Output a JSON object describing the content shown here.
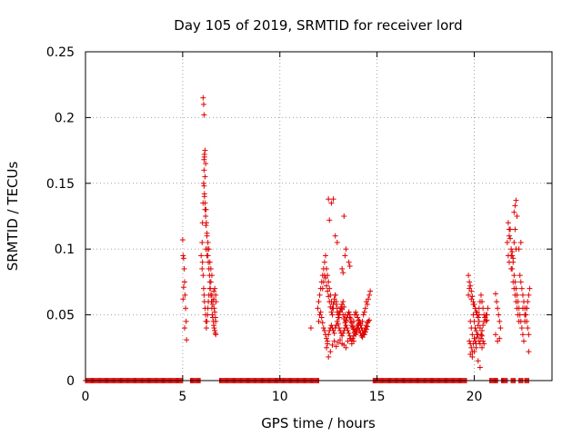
{
  "chart_data": {
    "type": "scatter",
    "title": "Day 105 of 2019, SRMTID for receiver lord",
    "xlabel": "GPS time / hours",
    "ylabel": "SRMTID / TECUs",
    "xlim": [
      0,
      24
    ],
    "ylim": [
      0,
      0.25
    ],
    "xticks": [
      0,
      5,
      10,
      15,
      20
    ],
    "xtick_labels": [
      "0",
      "5",
      "10",
      "15",
      "20"
    ],
    "yticks": [
      0,
      0.05,
      0.1,
      0.15,
      0.2,
      0.25
    ],
    "ytick_labels": [
      "0",
      "0.05",
      "0.1",
      "0.15",
      "0.2",
      "0.25"
    ],
    "grid": true,
    "marker": "plus",
    "color": "#e00000",
    "zero_segments": [
      [
        0.0,
        5.0
      ],
      [
        5.4,
        5.9
      ],
      [
        6.9,
        12.0
      ],
      [
        14.8,
        19.6
      ],
      [
        20.8,
        21.2
      ],
      [
        21.4,
        21.7
      ],
      [
        21.9,
        22.1
      ],
      [
        22.3,
        22.5
      ],
      [
        22.6,
        22.8
      ]
    ],
    "series": [
      {
        "name": "SRMTID",
        "x": [
          5.0,
          5.02,
          5.05,
          5.08,
          5.1,
          5.12,
          5.15,
          5.18,
          5.2,
          5.02,
          5.05,
          5.1,
          5.95,
          6.0,
          6.02,
          6.05,
          6.08,
          6.1,
          6.12,
          6.15,
          6.18,
          6.2,
          6.22,
          6.25,
          6.28,
          6.3,
          6.32,
          6.35,
          6.38,
          6.4,
          6.42,
          6.45,
          6.48,
          6.5,
          6.52,
          6.55,
          6.58,
          6.6,
          6.62,
          6.65,
          6.68,
          6.7,
          6.0,
          6.02,
          6.05,
          6.08,
          6.1,
          6.12,
          6.15,
          6.18,
          6.2,
          6.22,
          6.25,
          6.28,
          6.3,
          6.32,
          6.35,
          6.4,
          6.45,
          6.5,
          6.55,
          6.6,
          6.65,
          6.7,
          6.72,
          6.05,
          6.08,
          6.1,
          6.12,
          6.15,
          6.18,
          6.2,
          6.25,
          6.3,
          6.35,
          6.4,
          6.45,
          6.5,
          6.55,
          6.6,
          6.62,
          6.65,
          6.68,
          6.7,
          6.1,
          6.12,
          6.15,
          6.1,
          6.12,
          6.15,
          6.2,
          6.25,
          11.6,
          11.95,
          12.0,
          12.05,
          12.1,
          12.15,
          12.2,
          12.25,
          12.3,
          12.35,
          12.4,
          12.45,
          12.5,
          12.55,
          12.6,
          12.65,
          12.7,
          12.75,
          12.8,
          12.85,
          12.9,
          12.95,
          13.0,
          13.05,
          13.1,
          13.15,
          13.2,
          13.25,
          13.3,
          13.35,
          13.4,
          13.45,
          13.5,
          13.55,
          13.6,
          13.65,
          13.7,
          13.75,
          13.8,
          13.85,
          13.9,
          13.95,
          14.0,
          14.05,
          14.1,
          14.15,
          14.2,
          14.25,
          14.3,
          14.35,
          14.4,
          14.45,
          14.5,
          14.55,
          14.6,
          14.65,
          12.0,
          12.05,
          12.1,
          12.15,
          12.2,
          12.25,
          12.3,
          12.35,
          12.4,
          12.45,
          12.5,
          12.55,
          12.6,
          12.65,
          12.7,
          12.75,
          12.8,
          12.85,
          12.9,
          12.95,
          13.0,
          13.05,
          13.1,
          13.15,
          13.2,
          13.25,
          13.3,
          13.35,
          13.4,
          13.45,
          13.5,
          13.55,
          13.6,
          13.65,
          13.7,
          13.75,
          13.8,
          13.85,
          13.9,
          13.95,
          14.0,
          14.05,
          14.1,
          14.15,
          14.2,
          14.25,
          14.3,
          14.35,
          14.4,
          14.45,
          14.5,
          14.55,
          14.6,
          12.2,
          12.25,
          12.3,
          12.35,
          12.4,
          12.45,
          12.5,
          12.55,
          12.6,
          12.65,
          12.7,
          12.75,
          12.8,
          12.85,
          12.9,
          12.95,
          13.0,
          13.05,
          13.1,
          13.15,
          13.2,
          13.25,
          13.3,
          13.35,
          13.4,
          13.45,
          13.5,
          13.55,
          13.6,
          13.65,
          13.7,
          13.75,
          13.8,
          13.85,
          13.9,
          13.95,
          14.0,
          14.05,
          14.1,
          14.15,
          14.2,
          14.25,
          14.3,
          14.35,
          14.4,
          14.45,
          14.5,
          12.4,
          12.45,
          12.5,
          12.6,
          12.7,
          12.8,
          12.9,
          13.0,
          13.1,
          13.2,
          13.3,
          13.4,
          13.5,
          13.6,
          13.7,
          13.8,
          12.5,
          12.55,
          12.65,
          12.75,
          12.85,
          12.95,
          13.3,
          13.35,
          13.4,
          13.55,
          13.6,
          13.2,
          13.25,
          19.7,
          19.75,
          19.8,
          19.85,
          19.9,
          19.95,
          20.0,
          20.05,
          20.1,
          20.15,
          20.2,
          20.25,
          20.3,
          20.35,
          20.4,
          20.45,
          20.5,
          20.55,
          20.6,
          20.65,
          20.7,
          19.7,
          19.75,
          19.8,
          19.85,
          19.9,
          19.95,
          20.0,
          20.05,
          20.1,
          20.15,
          20.2,
          20.25,
          20.3,
          20.35,
          20.4,
          20.45,
          20.5,
          20.55,
          20.6,
          20.65,
          19.75,
          19.8,
          19.85,
          19.9,
          19.95,
          20.0,
          20.05,
          20.1,
          20.15,
          20.2,
          20.25,
          20.3,
          20.35,
          20.4,
          20.45,
          20.5,
          19.8,
          19.9,
          20.0,
          20.1,
          20.2,
          20.3,
          20.4,
          19.85,
          19.95,
          20.05,
          20.15,
          20.25,
          21.1,
          21.15,
          21.2,
          21.25,
          21.3,
          21.35,
          21.1,
          21.2,
          21.3,
          21.7,
          21.75,
          21.8,
          21.85,
          21.9,
          21.95,
          22.0,
          22.05,
          22.1,
          22.15,
          22.2,
          22.25,
          22.3,
          22.35,
          22.4,
          22.45,
          22.5,
          22.55,
          22.6,
          22.65,
          22.7,
          22.75,
          22.8,
          22.85,
          21.75,
          21.8,
          21.85,
          21.9,
          21.95,
          22.0,
          22.05,
          22.1,
          22.15,
          22.2,
          22.25,
          22.3,
          22.35,
          22.4,
          22.45,
          22.5,
          22.55,
          22.6,
          22.65,
          22.7,
          22.75,
          22.8,
          21.8,
          21.9,
          22.0,
          22.05,
          22.1,
          22.15,
          22.2,
          22.1,
          22.05,
          22.15,
          21.95,
          22.3,
          22.4,
          22.5,
          22.6,
          22.7,
          22.8
        ],
        "y": [
          0.107,
          0.095,
          0.093,
          0.085,
          0.075,
          0.065,
          0.055,
          0.045,
          0.031,
          0.062,
          0.071,
          0.04,
          0.095,
          0.105,
          0.12,
          0.135,
          0.15,
          0.16,
          0.17,
          0.175,
          0.165,
          0.13,
          0.12,
          0.11,
          0.1,
          0.095,
          0.09,
          0.085,
          0.08,
          0.075,
          0.07,
          0.065,
          0.06,
          0.055,
          0.05,
          0.048,
          0.045,
          0.042,
          0.04,
          0.038,
          0.036,
          0.035,
          0.085,
          0.09,
          0.08,
          0.07,
          0.065,
          0.06,
          0.055,
          0.05,
          0.045,
          0.04,
          0.045,
          0.05,
          0.055,
          0.06,
          0.065,
          0.07,
          0.075,
          0.065,
          0.06,
          0.068,
          0.07,
          0.065,
          0.06,
          0.215,
          0.21,
          0.202,
          0.14,
          0.13,
          0.125,
          0.1,
          0.095,
          0.105,
          0.1,
          0.09,
          0.085,
          0.08,
          0.058,
          0.062,
          0.055,
          0.052,
          0.048,
          0.045,
          0.168,
          0.172,
          0.155,
          0.148,
          0.142,
          0.135,
          0.118,
          0.112,
          0.04,
          0.055,
          0.06,
          0.065,
          0.07,
          0.075,
          0.08,
          0.085,
          0.09,
          0.095,
          0.085,
          0.08,
          0.075,
          0.07,
          0.065,
          0.06,
          0.055,
          0.058,
          0.062,
          0.065,
          0.06,
          0.055,
          0.05,
          0.048,
          0.052,
          0.055,
          0.058,
          0.06,
          0.056,
          0.05,
          0.045,
          0.048,
          0.05,
          0.052,
          0.048,
          0.045,
          0.042,
          0.04,
          0.045,
          0.05,
          0.052,
          0.05,
          0.048,
          0.046,
          0.044,
          0.042,
          0.04,
          0.045,
          0.05,
          0.052,
          0.055,
          0.06,
          0.058,
          0.062,
          0.065,
          0.068,
          0.045,
          0.05,
          0.052,
          0.048,
          0.044,
          0.04,
          0.038,
          0.035,
          0.032,
          0.03,
          0.035,
          0.038,
          0.04,
          0.042,
          0.04,
          0.038,
          0.036,
          0.04,
          0.042,
          0.045,
          0.043,
          0.04,
          0.038,
          0.036,
          0.034,
          0.036,
          0.038,
          0.04,
          0.042,
          0.04,
          0.038,
          0.036,
          0.034,
          0.032,
          0.03,
          0.032,
          0.034,
          0.036,
          0.038,
          0.04,
          0.042,
          0.04,
          0.038,
          0.036,
          0.034,
          0.033,
          0.035,
          0.038,
          0.04,
          0.042,
          0.044,
          0.045,
          0.046,
          0.07,
          0.075,
          0.08,
          0.078,
          0.072,
          0.068,
          0.064,
          0.06,
          0.056,
          0.052,
          0.05,
          0.055,
          0.06,
          0.065,
          0.058,
          0.052,
          0.048,
          0.05,
          0.053,
          0.056,
          0.054,
          0.05,
          0.047,
          0.044,
          0.046,
          0.048,
          0.05,
          0.052,
          0.05,
          0.047,
          0.044,
          0.041,
          0.039,
          0.037,
          0.035,
          0.037,
          0.04,
          0.043,
          0.045,
          0.043,
          0.04,
          0.038,
          0.036,
          0.035,
          0.037,
          0.039,
          0.041,
          0.025,
          0.028,
          0.018,
          0.022,
          0.027,
          0.03,
          0.026,
          0.029,
          0.031,
          0.028,
          0.027,
          0.025,
          0.03,
          0.032,
          0.028,
          0.03,
          0.138,
          0.122,
          0.135,
          0.138,
          0.11,
          0.105,
          0.125,
          0.095,
          0.1,
          0.09,
          0.087,
          0.085,
          0.082,
          0.065,
          0.07,
          0.072,
          0.068,
          0.064,
          0.06,
          0.058,
          0.055,
          0.052,
          0.05,
          0.048,
          0.055,
          0.06,
          0.065,
          0.06,
          0.055,
          0.05,
          0.048,
          0.045,
          0.05,
          0.055,
          0.08,
          0.075,
          0.045,
          0.04,
          0.035,
          0.05,
          0.045,
          0.04,
          0.038,
          0.035,
          0.042,
          0.045,
          0.04,
          0.035,
          0.038,
          0.042,
          0.045,
          0.048,
          0.05,
          0.046,
          0.03,
          0.028,
          0.025,
          0.022,
          0.028,
          0.032,
          0.03,
          0.028,
          0.033,
          0.035,
          0.03,
          0.028,
          0.032,
          0.034,
          0.03,
          0.028,
          0.02,
          0.018,
          0.022,
          0.025,
          0.015,
          0.01,
          0.025,
          0.062,
          0.058,
          0.055,
          0.052,
          0.05,
          0.066,
          0.06,
          0.055,
          0.05,
          0.045,
          0.04,
          0.035,
          0.03,
          0.032,
          0.105,
          0.095,
          0.11,
          0.115,
          0.1,
          0.095,
          0.09,
          0.08,
          0.075,
          0.07,
          0.065,
          0.06,
          0.055,
          0.05,
          0.045,
          0.04,
          0.035,
          0.03,
          0.045,
          0.05,
          0.055,
          0.06,
          0.065,
          0.07,
          0.12,
          0.115,
          0.108,
          0.095,
          0.085,
          0.075,
          0.07,
          0.065,
          0.06,
          0.055,
          0.05,
          0.045,
          0.08,
          0.075,
          0.07,
          0.065,
          0.06,
          0.055,
          0.05,
          0.045,
          0.04,
          0.035,
          0.09,
          0.085,
          0.093,
          0.128,
          0.133,
          0.137,
          0.125,
          0.115,
          0.105,
          0.1,
          0.098,
          0.1,
          0.105,
          0.055,
          0.05,
          0.055,
          0.022
        ]
      }
    ]
  }
}
